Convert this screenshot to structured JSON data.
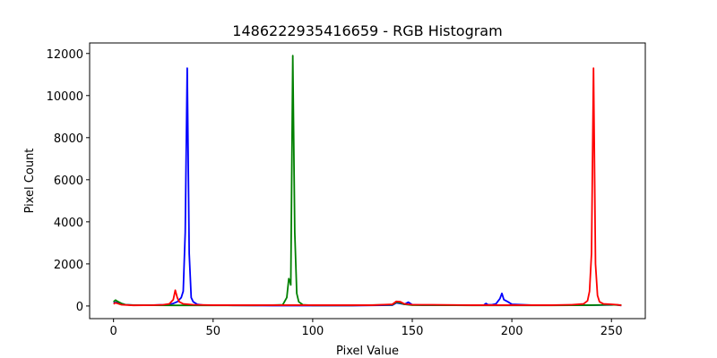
{
  "chart_data": {
    "type": "line",
    "title": "1486222935416659 - RGB Histogram",
    "xlabel": "Pixel Value",
    "ylabel": "Pixel Count",
    "xlim": [
      -12,
      267
    ],
    "ylim": [
      -600,
      12500
    ],
    "xticks": [
      0,
      50,
      100,
      150,
      200,
      250
    ],
    "yticks": [
      0,
      2000,
      4000,
      6000,
      8000,
      10000,
      12000
    ],
    "grid": false,
    "legend": "none",
    "series": [
      {
        "color": "#0000ff",
        "points": [
          [
            0,
            150
          ],
          [
            2,
            180
          ],
          [
            4,
            120
          ],
          [
            6,
            60
          ],
          [
            10,
            40
          ],
          [
            20,
            40
          ],
          [
            25,
            60
          ],
          [
            28,
            80
          ],
          [
            30,
            120
          ],
          [
            32,
            200
          ],
          [
            34,
            400
          ],
          [
            35,
            700
          ],
          [
            36,
            3500
          ],
          [
            37,
            11300
          ],
          [
            38,
            2500
          ],
          [
            39,
            400
          ],
          [
            40,
            200
          ],
          [
            42,
            80
          ],
          [
            45,
            40
          ],
          [
            60,
            30
          ],
          [
            80,
            20
          ],
          [
            100,
            20
          ],
          [
            120,
            20
          ],
          [
            140,
            40
          ],
          [
            142,
            150
          ],
          [
            144,
            120
          ],
          [
            146,
            80
          ],
          [
            148,
            180
          ],
          [
            150,
            60
          ],
          [
            155,
            40
          ],
          [
            160,
            40
          ],
          [
            180,
            40
          ],
          [
            186,
            50
          ],
          [
            187,
            120
          ],
          [
            188,
            60
          ],
          [
            190,
            60
          ],
          [
            192,
            100
          ],
          [
            194,
            350
          ],
          [
            195,
            600
          ],
          [
            196,
            300
          ],
          [
            198,
            200
          ],
          [
            200,
            80
          ],
          [
            210,
            40
          ],
          [
            230,
            40
          ],
          [
            240,
            40
          ],
          [
            250,
            50
          ],
          [
            252,
            60
          ],
          [
            255,
            20
          ]
        ]
      },
      {
        "color": "#008000",
        "points": [
          [
            0,
            200
          ],
          [
            1,
            280
          ],
          [
            2,
            220
          ],
          [
            4,
            120
          ],
          [
            6,
            60
          ],
          [
            10,
            40
          ],
          [
            30,
            30
          ],
          [
            50,
            30
          ],
          [
            70,
            30
          ],
          [
            80,
            40
          ],
          [
            85,
            60
          ],
          [
            87,
            400
          ],
          [
            88,
            1300
          ],
          [
            88.5,
            1200
          ],
          [
            89,
            1000
          ],
          [
            90,
            11900
          ],
          [
            91,
            3500
          ],
          [
            92,
            600
          ],
          [
            93,
            200
          ],
          [
            95,
            60
          ],
          [
            100,
            30
          ],
          [
            120,
            30
          ],
          [
            140,
            60
          ],
          [
            142,
            180
          ],
          [
            144,
            150
          ],
          [
            146,
            80
          ],
          [
            150,
            40
          ],
          [
            160,
            40
          ],
          [
            180,
            30
          ],
          [
            200,
            30
          ],
          [
            220,
            30
          ],
          [
            240,
            40
          ],
          [
            250,
            60
          ],
          [
            255,
            40
          ]
        ]
      },
      {
        "color": "#ff0000",
        "points": [
          [
            0,
            100
          ],
          [
            1,
            150
          ],
          [
            2,
            120
          ],
          [
            4,
            60
          ],
          [
            10,
            30
          ],
          [
            20,
            40
          ],
          [
            25,
            60
          ],
          [
            28,
            100
          ],
          [
            30,
            300
          ],
          [
            31,
            750
          ],
          [
            32,
            400
          ],
          [
            33,
            200
          ],
          [
            35,
            100
          ],
          [
            40,
            60
          ],
          [
            50,
            40
          ],
          [
            70,
            40
          ],
          [
            90,
            40
          ],
          [
            110,
            40
          ],
          [
            130,
            40
          ],
          [
            140,
            80
          ],
          [
            142,
            220
          ],
          [
            144,
            200
          ],
          [
            146,
            100
          ],
          [
            150,
            60
          ],
          [
            160,
            60
          ],
          [
            180,
            40
          ],
          [
            200,
            40
          ],
          [
            220,
            40
          ],
          [
            230,
            60
          ],
          [
            236,
            100
          ],
          [
            238,
            250
          ],
          [
            239,
            700
          ],
          [
            240,
            2500
          ],
          [
            241,
            11300
          ],
          [
            242,
            2000
          ],
          [
            243,
            500
          ],
          [
            244,
            200
          ],
          [
            246,
            100
          ],
          [
            250,
            80
          ],
          [
            253,
            60
          ],
          [
            255,
            30
          ]
        ]
      }
    ]
  }
}
